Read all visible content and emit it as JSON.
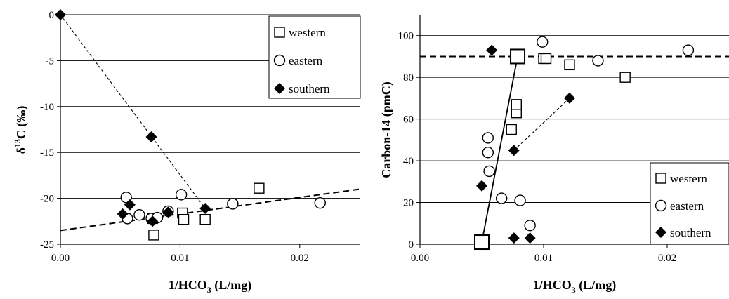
{
  "chart_data": [
    {
      "type": "scatter",
      "xlabel": "1/HCO",
      "xlabel_sub": "3",
      "xlabel_unit": " (L/mg)",
      "ylabel_prefix": "δ",
      "ylabel_sup": "13",
      "ylabel_main": "C (‰)",
      "xlim": [
        0,
        0.025
      ],
      "ylim": [
        -25,
        0
      ],
      "xticks": [
        0,
        0.01,
        0.02
      ],
      "xtick_labels": [
        "0.00",
        "0.01",
        "0.02"
      ],
      "yticks": [
        0,
        -5,
        -10,
        -15,
        -20,
        -25
      ],
      "ytick_labels": [
        "0",
        "-5",
        "-10",
        "-15",
        "-20",
        "-25"
      ],
      "grid": "horizontal",
      "legend_position": "top-right",
      "series": [
        {
          "name": "western",
          "marker": "square",
          "size": "small",
          "points": [
            [
              0.0077,
              -22.2
            ],
            [
              0.0078,
              -24.0
            ],
            [
              0.0102,
              -21.6
            ],
            [
              0.0103,
              -22.3
            ],
            [
              0.0121,
              -22.3
            ],
            [
              0.0166,
              -18.9
            ]
          ]
        },
        {
          "name": "eastern",
          "marker": "circle",
          "size": "small",
          "points": [
            [
              0.0055,
              -19.9
            ],
            [
              0.0056,
              -22.2
            ],
            [
              0.0066,
              -21.8
            ],
            [
              0.0076,
              -22.2
            ],
            [
              0.0081,
              -22.1
            ],
            [
              0.009,
              -21.4
            ],
            [
              0.0101,
              -19.6
            ],
            [
              0.0144,
              -20.6
            ],
            [
              0.0217,
              -20.5
            ]
          ]
        },
        {
          "name": "southern",
          "marker": "diamond",
          "size": "small",
          "points": [
            [
              0.0,
              0.0
            ],
            [
              0.0052,
              -21.7
            ],
            [
              0.0058,
              -20.7
            ],
            [
              0.0076,
              -13.3
            ],
            [
              0.0077,
              -22.5
            ],
            [
              0.009,
              -21.5
            ],
            [
              0.0121,
              -21.1
            ]
          ]
        }
      ],
      "lines": [
        {
          "style": "dashed-thin",
          "points": [
            [
              0.0,
              0.0
            ],
            [
              0.0121,
              -21.1
            ]
          ]
        },
        {
          "style": "dashed-thick",
          "points": [
            [
              0.0,
              -23.5
            ],
            [
              0.025,
              -19.0
            ]
          ]
        }
      ]
    },
    {
      "type": "scatter",
      "xlabel": "1/HCO",
      "xlabel_sub": "3",
      "xlabel_unit": " (L/mg)",
      "ylabel": "Carbon-14 (pmC)",
      "xlim": [
        0,
        0.025
      ],
      "ylim": [
        0,
        110
      ],
      "xticks": [
        0,
        0.01,
        0.02
      ],
      "xtick_labels": [
        "0.00",
        "0.01",
        "0.02"
      ],
      "yticks": [
        0,
        20,
        40,
        60,
        80,
        100
      ],
      "ytick_labels": [
        "0",
        "20",
        "40",
        "60",
        "80",
        "100"
      ],
      "grid": "horizontal",
      "legend_position": "bottom-right",
      "series": [
        {
          "name": "western",
          "marker": "square",
          "size": "small",
          "points": [
            [
              0.0074,
              55
            ],
            [
              0.0078,
              63
            ],
            [
              0.0078,
              67
            ],
            [
              0.01,
              89
            ],
            [
              0.0102,
              89
            ],
            [
              0.0121,
              86
            ],
            [
              0.0166,
              80
            ]
          ]
        },
        {
          "name": "",
          "marker": "square",
          "size": "large",
          "points": [
            [
              0.005,
              1
            ],
            [
              0.0079,
              90
            ]
          ]
        },
        {
          "name": "eastern",
          "marker": "circle",
          "size": "small",
          "points": [
            [
              0.0055,
              51
            ],
            [
              0.0055,
              44
            ],
            [
              0.0056,
              35
            ],
            [
              0.0066,
              22
            ],
            [
              0.0081,
              21
            ],
            [
              0.0089,
              9
            ],
            [
              0.0099,
              97
            ],
            [
              0.0144,
              88
            ],
            [
              0.0217,
              93
            ]
          ]
        },
        {
          "name": "southern",
          "marker": "diamond",
          "size": "small",
          "points": [
            [
              0.005,
              28
            ],
            [
              0.0058,
              93
            ],
            [
              0.0076,
              45
            ],
            [
              0.0076,
              3
            ],
            [
              0.0089,
              3
            ],
            [
              0.0121,
              70
            ]
          ]
        }
      ],
      "lines": [
        {
          "style": "solid",
          "points": [
            [
              0.005,
              1
            ],
            [
              0.0079,
              90
            ]
          ]
        },
        {
          "style": "dashed-thin",
          "points": [
            [
              0.0076,
              45
            ],
            [
              0.0121,
              70
            ]
          ]
        },
        {
          "style": "dashed-thick",
          "points": [
            [
              0.0,
              90
            ],
            [
              0.025,
              90
            ]
          ]
        }
      ]
    }
  ]
}
